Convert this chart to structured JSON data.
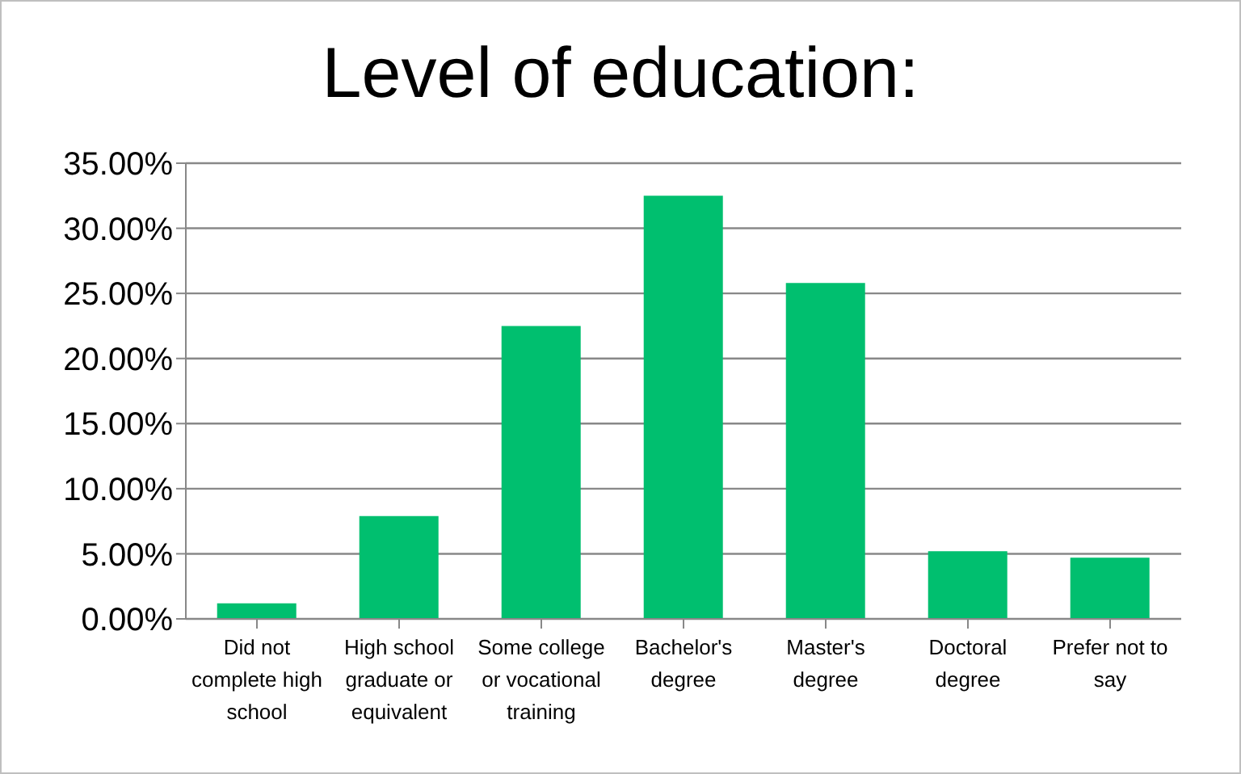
{
  "chart_data": {
    "type": "bar",
    "title": "Level of education:",
    "categories": [
      "Did not complete high school",
      "High school graduate or equivalent",
      "Some college or vocational training",
      "Bachelor's degree",
      "Master's degree",
      "Doctoral degree",
      "Prefer not to say"
    ],
    "values": [
      1.2,
      7.9,
      22.5,
      32.5,
      25.8,
      5.2,
      4.7
    ],
    "color": "#00bf6f",
    "ylim": [
      0,
      35
    ],
    "yticks": [
      {
        "value": 0,
        "label": "0.00%"
      },
      {
        "value": 5,
        "label": "5.00%"
      },
      {
        "value": 10,
        "label": "10.00%"
      },
      {
        "value": 15,
        "label": "15.00%"
      },
      {
        "value": 20,
        "label": "20.00%"
      },
      {
        "value": 25,
        "label": "25.00%"
      },
      {
        "value": 30,
        "label": "30.00%"
      },
      {
        "value": 35,
        "label": "35.00%"
      }
    ],
    "grid": "y"
  }
}
